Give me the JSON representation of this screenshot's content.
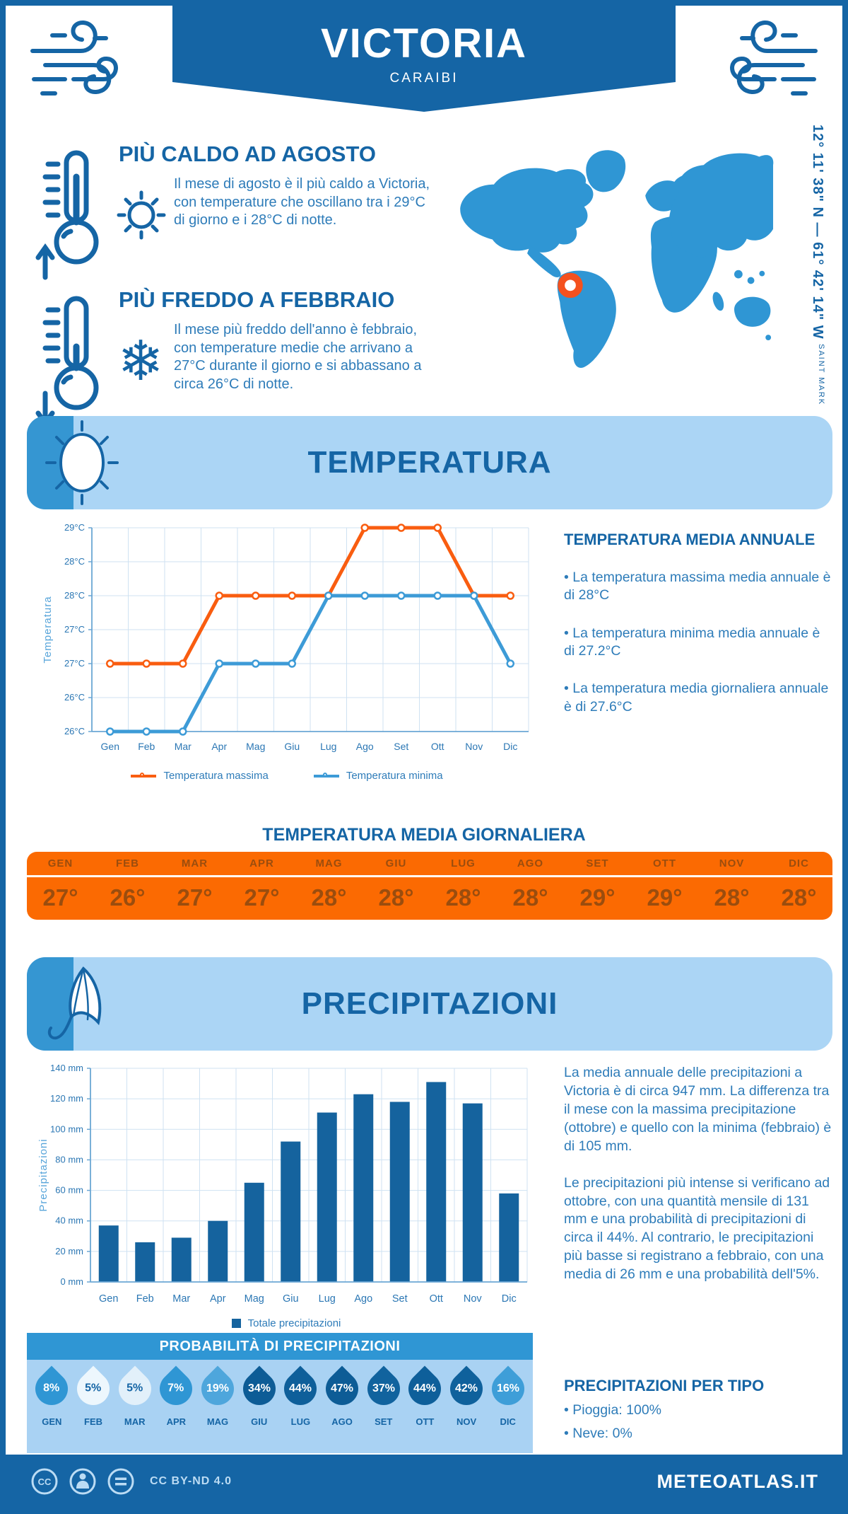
{
  "colors": {
    "dark_blue": "#1565a5",
    "medium_blue": "#2f96d4",
    "light_blue": "#abd5f5",
    "text_blue": "#2e7cb9",
    "table_orange": "#fb6a02",
    "table_text": "#9b4d0e",
    "line_orange": "#f95d10",
    "line_blue": "#3d9bd7",
    "bar_blue": "#15639e",
    "marker_orange": "#f4511e"
  },
  "header": {
    "title": "VICTORIA",
    "subtitle": "CARAIBI"
  },
  "location": {
    "coordinates": "12° 11' 38\" N — 61° 42' 14\" W",
    "district": "SAINT MARK"
  },
  "highlights": [
    {
      "title": "PIÙ CALDO AD AGOSTO",
      "text": "Il mese di agosto è il più caldo a Victoria, con temperature che oscillano tra i 29°C di giorno e i 28°C di notte."
    },
    {
      "title": "PIÙ FREDDO A FEBBRAIO",
      "text": "Il mese più freddo dell'anno è febbraio, con temperature medie che arrivano a 27°C durante il giorno e si abbassano a circa 26°C di notte."
    }
  ],
  "temperature": {
    "banner": "TEMPERATURA",
    "annual_heading": "TEMPERATURA MEDIA ANNUALE",
    "annual_bullets": [
      "La temperatura massima media annuale è di 28°C",
      "La temperatura minima media annuale è di 27.2°C",
      "La temperatura media giornaliera annuale è di 27.6°C"
    ],
    "daily_heading": "TEMPERATURA MEDIA GIORNALIERA",
    "months": [
      "GEN",
      "FEB",
      "MAR",
      "APR",
      "MAG",
      "GIU",
      "LUG",
      "AGO",
      "SET",
      "OTT",
      "NOV",
      "DIC"
    ],
    "daily_values": [
      "27°",
      "26°",
      "27°",
      "27°",
      "28°",
      "28°",
      "28°",
      "28°",
      "29°",
      "29°",
      "28°",
      "28°"
    ]
  },
  "precipitation": {
    "banner": "PRECIPITAZIONI",
    "paragraphs": [
      "La media annuale delle precipitazioni a Victoria è di circa 947 mm. La differenza tra il mese con la massima precipitazione (ottobre) e quello con la minima (febbraio) è di 105 mm.",
      "Le precipitazioni più intense si verificano ad ottobre, con una quantità mensile di 131 mm e una probabilità di precipitazioni di circa il 44%. Al contrario, le precipitazioni più basse si registrano a febbraio, con una media di 26 mm e una probabilità dell'5%."
    ],
    "probability_heading": "PROBABILITÀ DI PRECIPITAZIONI",
    "drops": [
      {
        "month": "GEN",
        "value": "8%",
        "fill": "#2f96d4",
        "text": "#ffffff"
      },
      {
        "month": "FEB",
        "value": "5%",
        "fill": "#edf7fd",
        "text": "#1565a5"
      },
      {
        "month": "MAR",
        "value": "5%",
        "fill": "#e2f0fa",
        "text": "#1565a5"
      },
      {
        "month": "APR",
        "value": "7%",
        "fill": "#2f96d4",
        "text": "#ffffff"
      },
      {
        "month": "MAG",
        "value": "19%",
        "fill": "#4ea6dc",
        "text": "#ffffff"
      },
      {
        "month": "GIU",
        "value": "34%",
        "fill": "#0d5c96",
        "text": "#ffffff"
      },
      {
        "month": "LUG",
        "value": "44%",
        "fill": "#0e5f9a",
        "text": "#ffffff"
      },
      {
        "month": "AGO",
        "value": "47%",
        "fill": "#0d5c96",
        "text": "#ffffff"
      },
      {
        "month": "SET",
        "value": "37%",
        "fill": "#11639e",
        "text": "#ffffff"
      },
      {
        "month": "OTT",
        "value": "44%",
        "fill": "#0e5f9a",
        "text": "#ffffff"
      },
      {
        "month": "NOV",
        "value": "42%",
        "fill": "#0f619c",
        "text": "#ffffff"
      },
      {
        "month": "DIC",
        "value": "16%",
        "fill": "#3e9ed8",
        "text": "#ffffff"
      }
    ],
    "types_heading": "PRECIPITAZIONI PER TIPO",
    "types_bullets": [
      "Pioggia: 100%",
      "Neve: 0%"
    ]
  },
  "chart_data": [
    {
      "type": "line",
      "categories": [
        "Gen",
        "Feb",
        "Mar",
        "Apr",
        "Mag",
        "Giu",
        "Lug",
        "Ago",
        "Set",
        "Ott",
        "Nov",
        "Dic"
      ],
      "series": [
        {
          "name": "Temperatura massima",
          "color": "#f95d10",
          "values": [
            27,
            27,
            27,
            28,
            28,
            28,
            28,
            29,
            29,
            29,
            28,
            28
          ]
        },
        {
          "name": "Temperatura minima",
          "color": "#3d9bd7",
          "values": [
            26,
            26,
            26,
            27,
            27,
            27,
            28,
            28,
            28,
            28,
            28,
            27
          ]
        }
      ],
      "ylabel": "Temperatura",
      "ylim": [
        26,
        29
      ],
      "ytick_step": 0.5,
      "ytick_labels_bottom_up": [
        "26°C",
        "26°C",
        "27°C",
        "27°C",
        "28°C",
        "28°C",
        "29°C"
      ],
      "grid": true,
      "legend_position": "bottom"
    },
    {
      "type": "bar",
      "categories": [
        "Gen",
        "Feb",
        "Mar",
        "Apr",
        "Mag",
        "Giu",
        "Lug",
        "Ago",
        "Set",
        "Ott",
        "Nov",
        "Dic"
      ],
      "values": [
        37,
        26,
        29,
        40,
        65,
        92,
        111,
        123,
        118,
        131,
        117,
        58
      ],
      "series_name": "Totale precipitazioni",
      "color": "#15639e",
      "ylabel": "Precipitazioni",
      "ylim": [
        0,
        140
      ],
      "ytick_step": 20,
      "ytick_suffix": " mm",
      "grid": true,
      "legend_position": "bottom"
    }
  ],
  "footer": {
    "license": "CC BY-ND 4.0",
    "site": "METEOATLAS.IT"
  }
}
